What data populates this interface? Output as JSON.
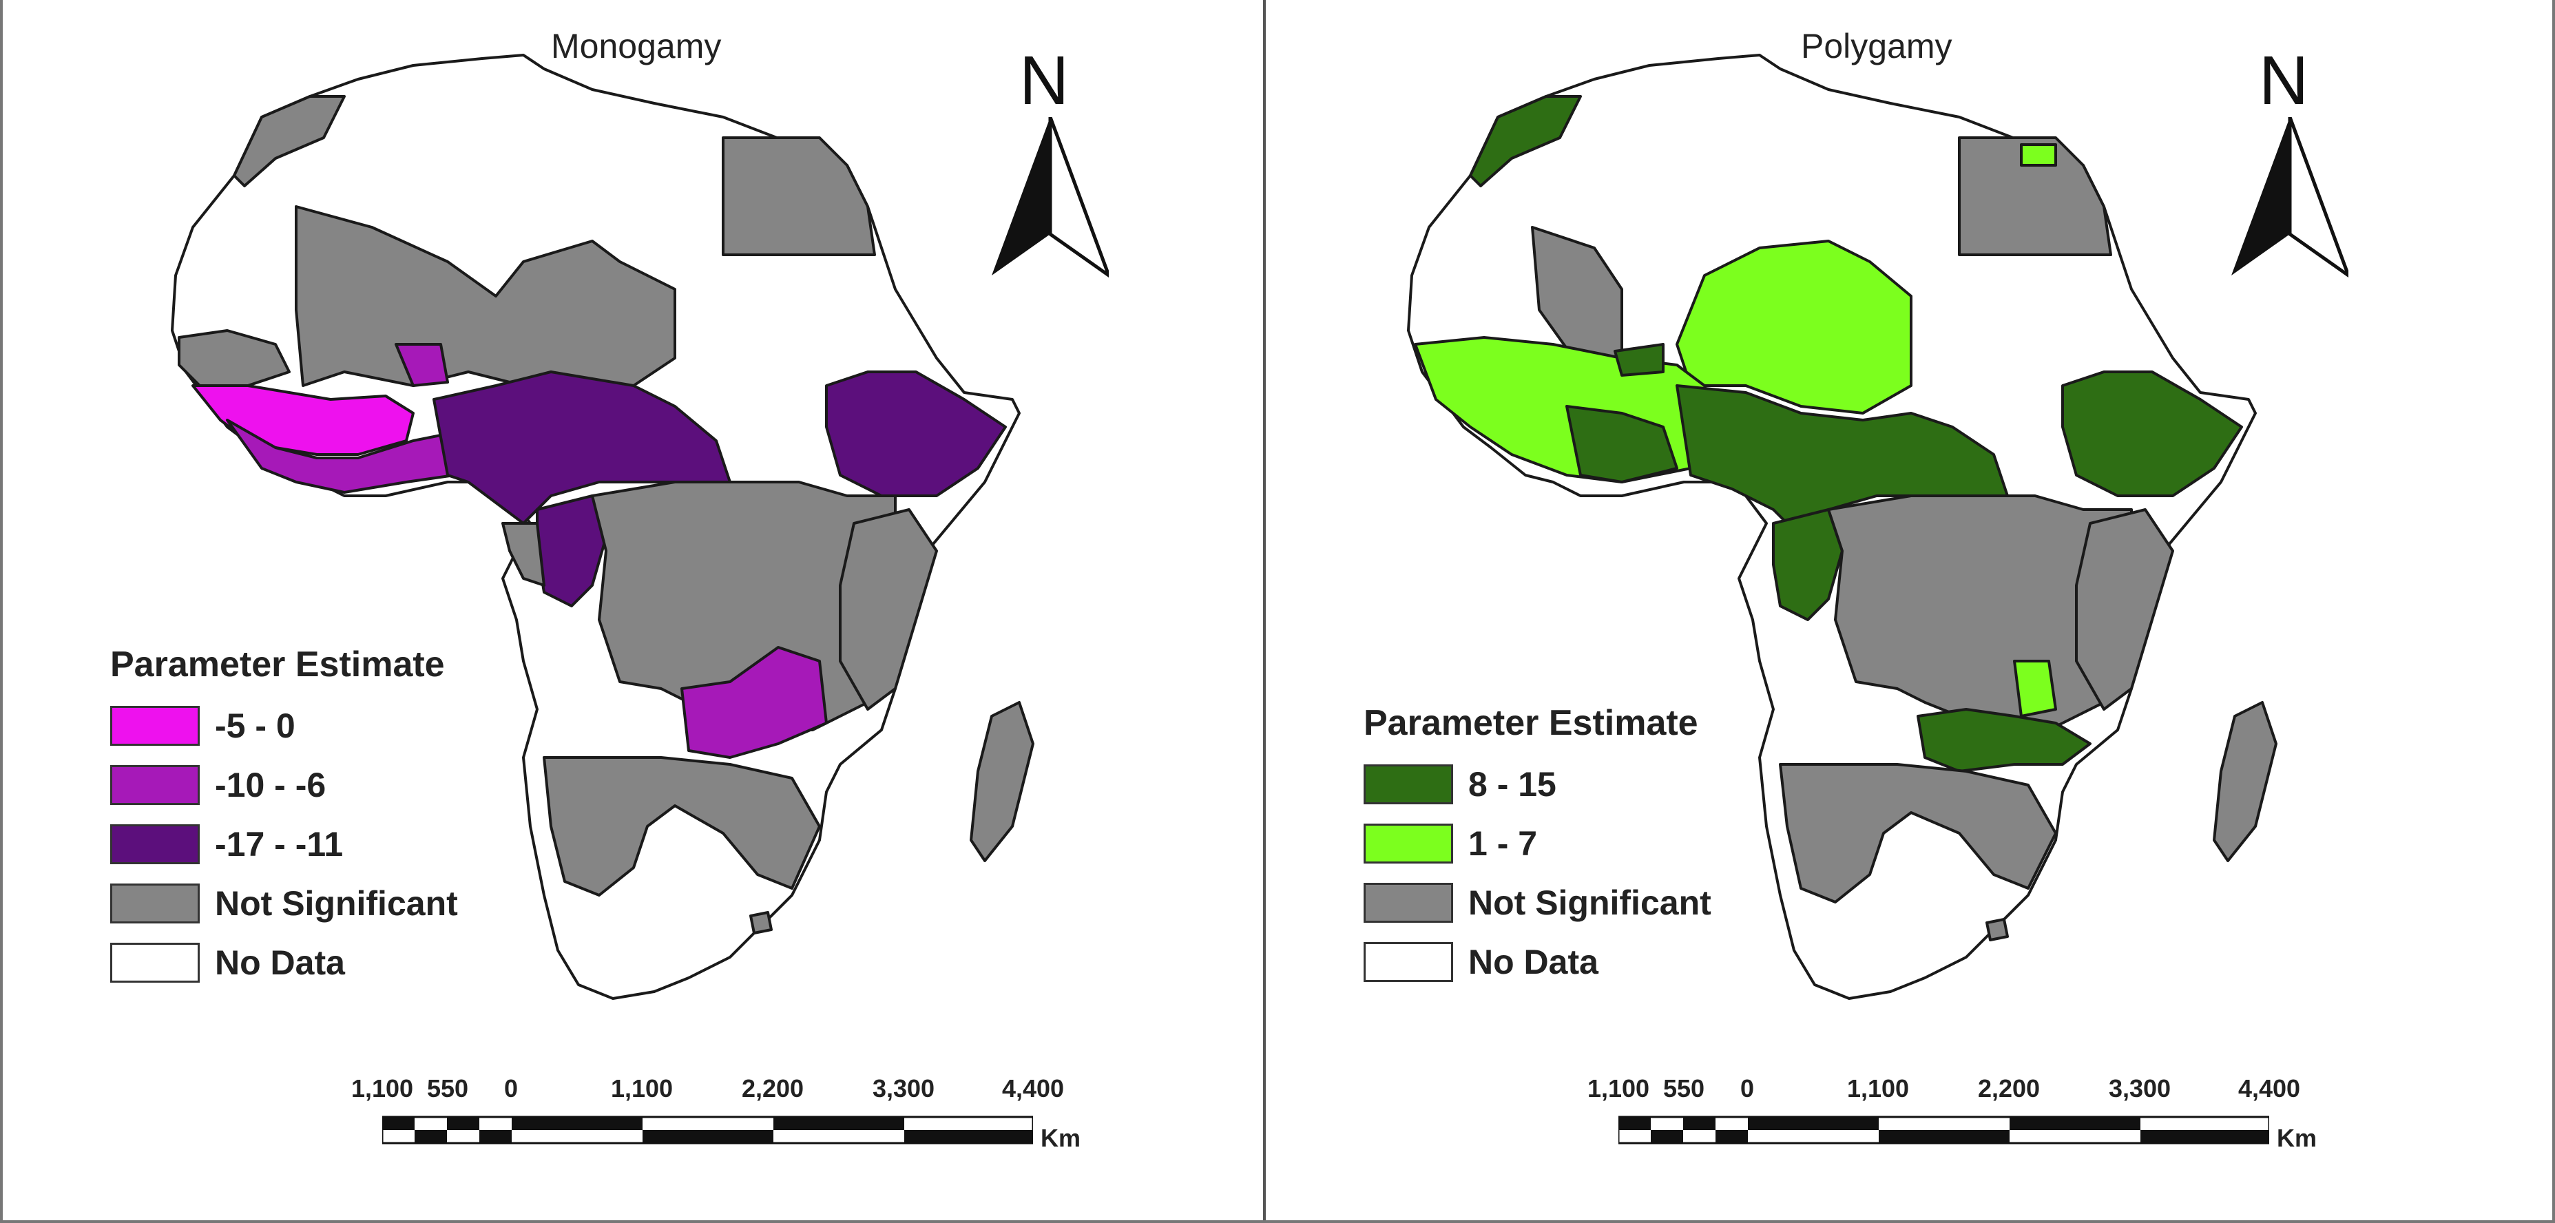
{
  "panels": [
    {
      "title": "Monogamy",
      "legend": {
        "title": "Parameter Estimate",
        "items": [
          {
            "label": "-5 - 0",
            "color": "#ee11ee"
          },
          {
            "label": "-10 - -6",
            "color": "#a619b8"
          },
          {
            "label": "-17 - -11",
            "color": "#5c0f7c"
          },
          {
            "label": "Not Significant",
            "color": "#858585"
          },
          {
            "label": "No Data",
            "color": "#ffffff"
          }
        ]
      },
      "north_label": "N",
      "scale": {
        "ticks": [
          "1,100",
          "550",
          "0",
          "1,100",
          "2,200",
          "3,300",
          "4,400"
        ],
        "unit": "Km"
      }
    },
    {
      "title": "Polygamy",
      "legend": {
        "title": "Parameter Estimate",
        "items": [
          {
            "label": "8 - 15",
            "color": "#2e6e14"
          },
          {
            "label": "1 - 7",
            "color": "#7cff1e"
          },
          {
            "label": "Not Significant",
            "color": "#858585"
          },
          {
            "label": "No Data",
            "color": "#ffffff"
          }
        ]
      },
      "north_label": "N",
      "scale": {
        "ticks": [
          "1,100",
          "550",
          "0",
          "1,100",
          "2,200",
          "3,300",
          "4,400"
        ],
        "unit": "Km"
      }
    }
  ]
}
